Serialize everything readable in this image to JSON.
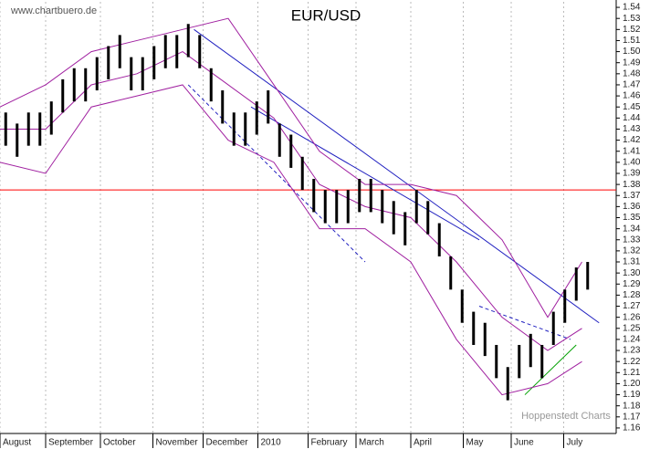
{
  "chart_data": {
    "type": "range-bar",
    "title": "EUR/USD",
    "source": "www.chartbuero.de",
    "credit": "Hoppenstedt Charts",
    "color": "#000000",
    "xlim": [
      0,
      54
    ],
    "xticks": [
      {
        "value": 0,
        "label": "August"
      },
      {
        "value": 4,
        "label": "September"
      },
      {
        "value": 8.8,
        "label": "October"
      },
      {
        "value": 13.4,
        "label": "November"
      },
      {
        "value": 17.8,
        "label": "December"
      },
      {
        "value": 22.6,
        "label": "2010"
      },
      {
        "value": 27,
        "label": "February"
      },
      {
        "value": 31.2,
        "label": "March"
      },
      {
        "value": 36,
        "label": "April"
      },
      {
        "value": 40.6,
        "label": "May"
      },
      {
        "value": 44.8,
        "label": "June"
      },
      {
        "value": 49.4,
        "label": "July"
      }
    ],
    "ylim": [
      1.155,
      1.545
    ],
    "yticks": [
      1.16,
      1.17,
      1.18,
      1.19,
      {
        "value": 1.2,
        "label": "1.20"
      },
      1.21,
      1.22,
      1.23,
      1.24,
      1.25,
      1.26,
      1.27,
      1.28,
      1.29,
      {
        "value": 1.3,
        "label": "1.30"
      },
      1.31,
      1.32,
      1.33,
      1.34,
      1.35,
      1.36,
      1.37,
      1.38,
      1.39,
      {
        "value": 1.4,
        "label": "1.40"
      },
      1.41,
      1.42,
      1.43,
      1.44,
      1.45,
      1.46,
      1.47,
      1.48,
      1.49,
      {
        "value": 1.5,
        "label": "1.50"
      },
      1.51,
      1.52,
      1.53,
      1.54
    ],
    "grid": true,
    "high": [
      1.445,
      1.435,
      1.445,
      1.445,
      1.455,
      1.475,
      1.485,
      1.485,
      1.495,
      1.505,
      1.515,
      1.495,
      1.495,
      1.505,
      1.515,
      1.515,
      1.525,
      1.515,
      1.485,
      1.465,
      1.445,
      1.445,
      1.455,
      1.465,
      1.435,
      1.425,
      1.405,
      1.385,
      1.375,
      1.375,
      1.375,
      1.385,
      1.385,
      1.375,
      1.365,
      1.355,
      1.375,
      1.365,
      1.345,
      1.315,
      1.285,
      1.265,
      1.255,
      1.235,
      1.215,
      1.235,
      1.245,
      1.235,
      1.265,
      1.285,
      1.305,
      1.31
    ],
    "low": [
      1.415,
      1.405,
      1.415,
      1.415,
      1.425,
      1.445,
      1.455,
      1.455,
      1.465,
      1.475,
      1.485,
      1.465,
      1.465,
      1.475,
      1.485,
      1.485,
      1.495,
      1.485,
      1.455,
      1.435,
      1.415,
      1.415,
      1.425,
      1.435,
      1.405,
      1.395,
      1.375,
      1.355,
      1.345,
      1.345,
      1.345,
      1.355,
      1.355,
      1.345,
      1.335,
      1.325,
      1.345,
      1.335,
      1.315,
      1.285,
      1.255,
      1.235,
      1.225,
      1.205,
      1.185,
      1.205,
      1.215,
      1.205,
      1.235,
      1.255,
      1.275,
      1.285
    ],
    "bands": [
      {
        "color": "#a020a0",
        "x": [
          0,
          4,
          8,
          12,
          16,
          20,
          24,
          28,
          32,
          36,
          40,
          44,
          48,
          51
        ],
        "values": [
          1.45,
          1.47,
          1.5,
          1.51,
          1.52,
          1.53,
          1.47,
          1.41,
          1.38,
          1.38,
          1.37,
          1.33,
          1.26,
          1.31
        ]
      },
      {
        "color": "#a020a0",
        "x": [
          0,
          4,
          8,
          12,
          16,
          20,
          24,
          28,
          32,
          36,
          40,
          44,
          48,
          51
        ],
        "values": [
          1.43,
          1.43,
          1.47,
          1.48,
          1.5,
          1.47,
          1.44,
          1.38,
          1.36,
          1.35,
          1.31,
          1.26,
          1.23,
          1.25
        ]
      },
      {
        "color": "#a020a0",
        "x": [
          0,
          4,
          8,
          12,
          16,
          20,
          24,
          28,
          32,
          36,
          40,
          44,
          48,
          51
        ],
        "values": [
          1.4,
          1.39,
          1.45,
          1.46,
          1.47,
          1.42,
          1.4,
          1.34,
          1.34,
          1.31,
          1.24,
          1.19,
          1.2,
          1.22
        ]
      }
    ],
    "lines": [
      {
        "color": "#ff0000",
        "dashed": false,
        "x": [
          0,
          54
        ],
        "values": [
          1.375,
          1.375
        ]
      },
      {
        "color": "#2020c0",
        "dashed": false,
        "x": [
          17,
          52.5
        ],
        "values": [
          1.52,
          1.255
        ]
      },
      {
        "color": "#2020c0",
        "dashed": false,
        "x": [
          22,
          42
        ],
        "values": [
          1.45,
          1.33
        ]
      },
      {
        "color": "#2020c0",
        "dashed": true,
        "x": [
          16.5,
          32
        ],
        "values": [
          1.47,
          1.31
        ]
      },
      {
        "color": "#2020c0",
        "dashed": true,
        "x": [
          42,
          50
        ],
        "values": [
          1.27,
          1.24
        ]
      },
      {
        "color": "#00a000",
        "dashed": false,
        "x": [
          46,
          50.5
        ],
        "values": [
          1.19,
          1.235
        ]
      }
    ]
  }
}
